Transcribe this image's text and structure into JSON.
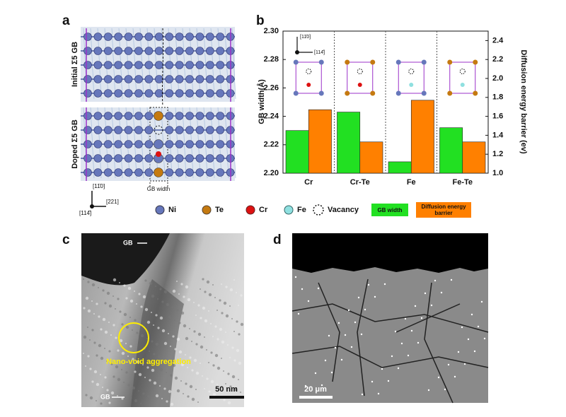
{
  "panel_a": {
    "label": "a",
    "initial": "Initial Σ5 GB",
    "doped": "Doped Σ5 GB",
    "gb_width": "GB width",
    "axis_up": "[11̄0]",
    "axis_right": "[221]",
    "axis_out": "[114̄]"
  },
  "legend": {
    "items": [
      "Ni",
      "Te",
      "Cr",
      "Fe",
      "Vacancy"
    ]
  },
  "chart_data": {
    "type": "bar",
    "label": "b",
    "categories": [
      "Cr",
      "Cr-Te",
      "Fe",
      "Fe-Te"
    ],
    "series": [
      {
        "name": "GB width",
        "color": "#22e022",
        "values": [
          2.23,
          2.243,
          2.208,
          2.232
        ]
      },
      {
        "name": "Diffusion energy barrier",
        "color": "#ff8000",
        "values": [
          1.67,
          1.33,
          1.77,
          1.33
        ],
        "axis": "y2"
      }
    ],
    "ylabel": "GB width(Å)",
    "y2label": "Diffusion energy barrier (ev)",
    "ylim": [
      2.2,
      2.3
    ],
    "yticks": [
      {
        "value": 2.2,
        "label": "2.20"
      },
      2.22,
      2.24,
      2.26,
      2.28,
      {
        "value": 2.3,
        "label": "2.30"
      }
    ],
    "y2lim": [
      1,
      2.5
    ],
    "y2ticks": [
      {
        "value": 1,
        "label": "1.0"
      },
      1.2,
      1.4,
      1.6,
      1.8,
      {
        "value": 2,
        "label": "2.0"
      },
      2.2,
      2.4
    ],
    "orientation_up": "[11̄0]",
    "orientation_right": "[114̄]"
  },
  "panel_c": {
    "label": "c",
    "gb_top": "GB",
    "annotation": "Nano-void aggregation",
    "gb_bottom": "GB",
    "scale_bar": "50 nm"
  },
  "panel_d": {
    "label": "d",
    "scale_bar": "20 μm"
  }
}
